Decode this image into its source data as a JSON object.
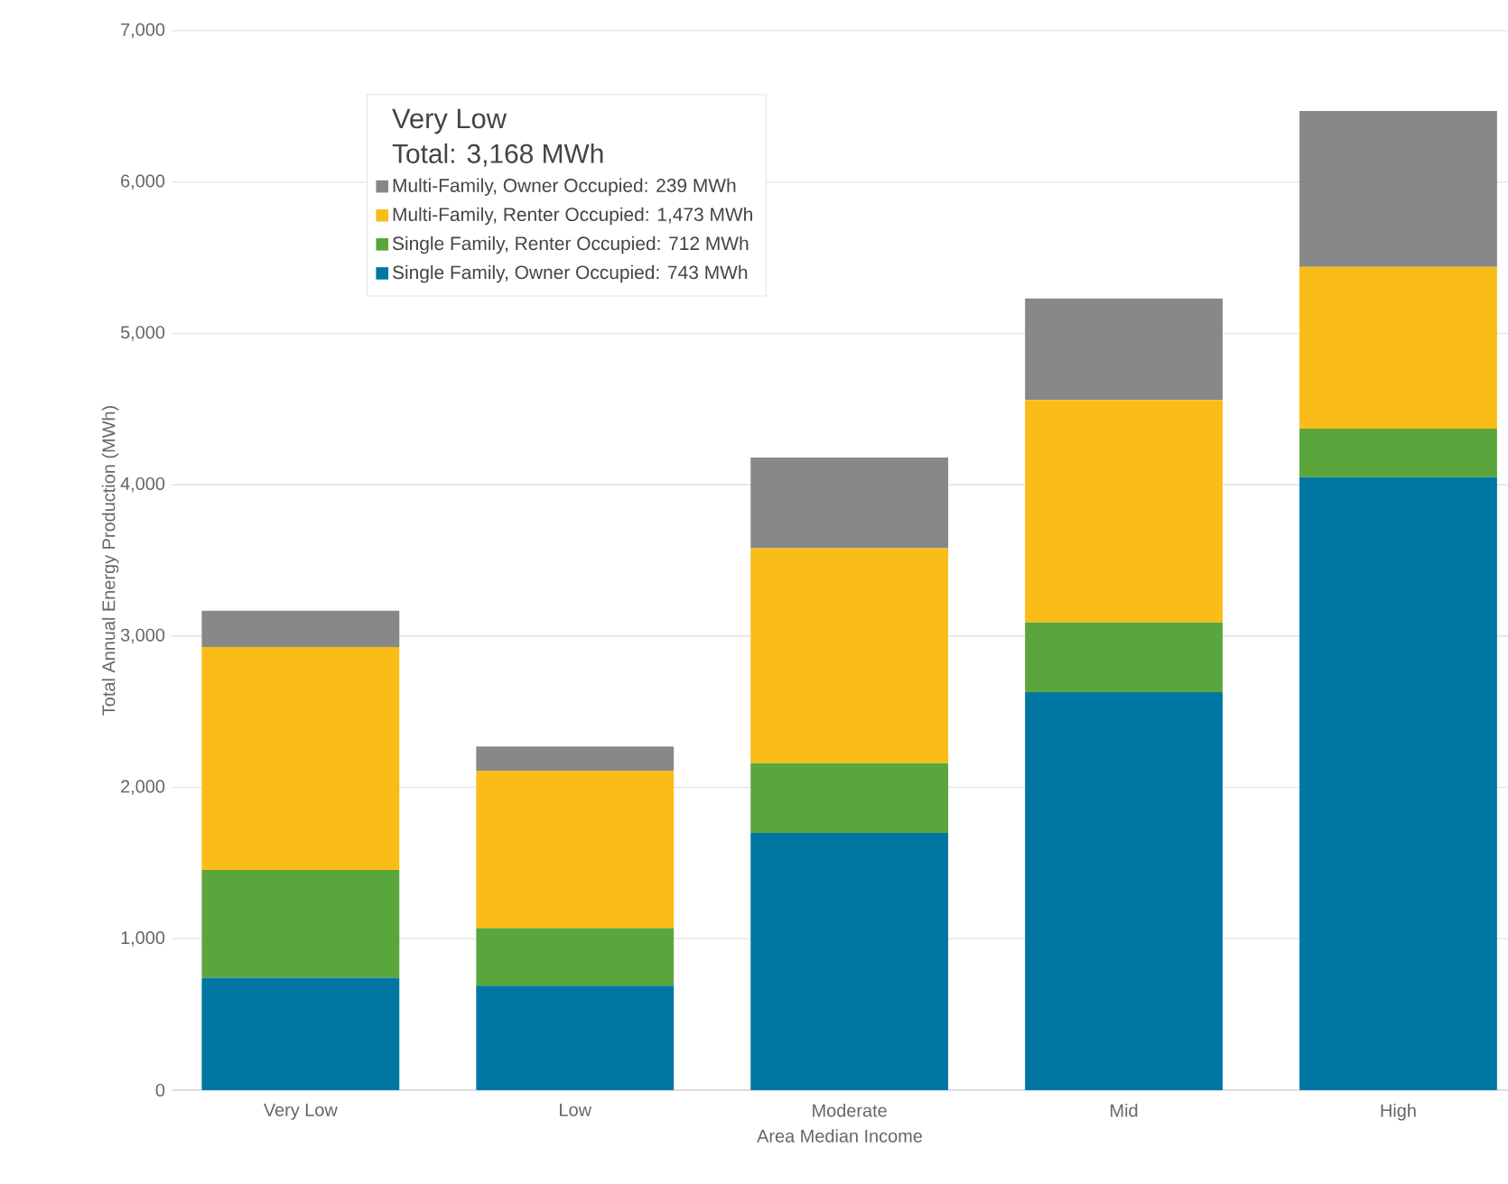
{
  "chart_data": {
    "type": "bar",
    "stacked": true,
    "xlabel": "Area Median Income",
    "ylabel": "Total Annual Energy Production (MWh)",
    "legend_title": "Very Low",
    "annotations": [
      "Total: 3,168 MWh"
    ],
    "categories": [
      "Very Low",
      "Low",
      "Moderate",
      "Mid",
      "High"
    ],
    "series": [
      {
        "name": "Single Family, Owner Occupied: 743 MWh",
        "color": "#0077a3",
        "values": [
          743,
          690,
          1700,
          2630,
          4050
        ]
      },
      {
        "name": "Single Family, Renter Occupied: 712 MWh",
        "color": "#5aa63c",
        "values": [
          712,
          380,
          460,
          460,
          320
        ]
      },
      {
        "name": "Multi-Family, Renter Occupied: 1,473 MWh",
        "color": "#f9bc18",
        "values": [
          1473,
          1040,
          1420,
          1470,
          1070
        ]
      },
      {
        "name": "Multi-Family, Owner Occupied: 239 MWh",
        "color": "#888888",
        "values": [
          239,
          160,
          600,
          670,
          1030
        ]
      }
    ],
    "ylim": [
      0,
      7000
    ],
    "yticks": [
      0,
      {
        "value": 1000,
        "label": "1,000"
      },
      {
        "value": 2000,
        "label": "2,000"
      },
      {
        "value": 3000,
        "label": "3,000"
      },
      {
        "value": 4000,
        "label": "4,000"
      },
      {
        "value": 5000,
        "label": "5,000"
      },
      {
        "value": 6000,
        "label": "6,000"
      },
      {
        "value": 7000,
        "label": "7,000"
      }
    ],
    "grid": "y",
    "legend": "top left"
  }
}
